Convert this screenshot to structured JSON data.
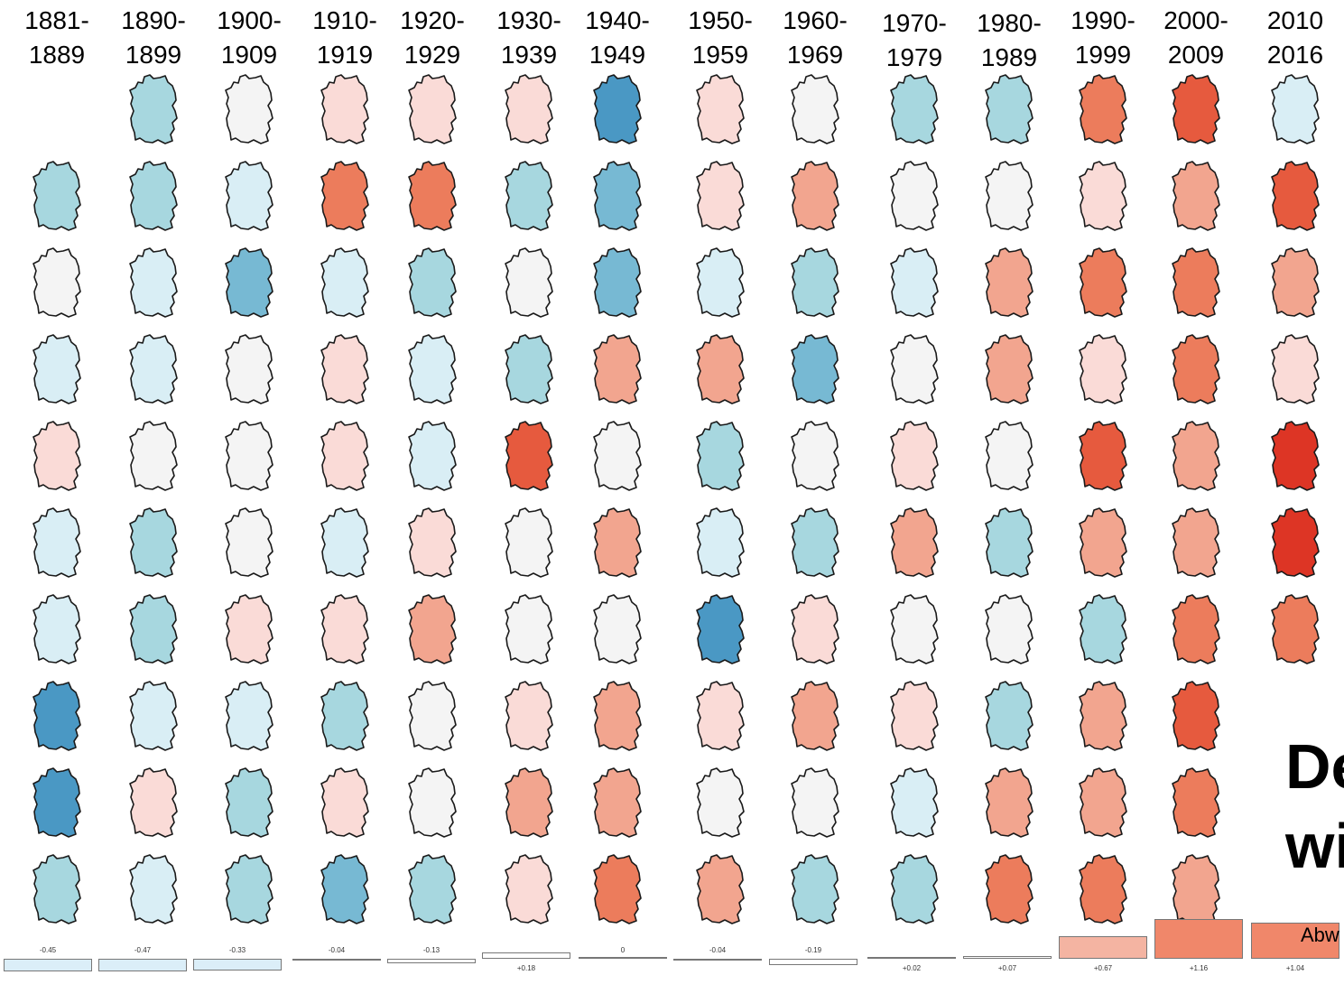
{
  "chart_data": {
    "type": "heatmap",
    "title": [
      "De",
      "wi"
    ],
    "subtitle": "Abw",
    "decades": [
      [
        "1881-",
        "1889"
      ],
      [
        "1890-",
        "1899"
      ],
      [
        "1900-",
        "1909"
      ],
      [
        "1910-",
        "1919"
      ],
      [
        "1920-",
        "1929"
      ],
      [
        "1930-",
        "1939"
      ],
      [
        "1940-",
        "1949"
      ],
      [
        "1950-",
        "1959"
      ],
      [
        "1960-",
        "1969"
      ],
      [
        "1970-",
        "1979"
      ],
      [
        "1980-",
        "1989"
      ],
      [
        "1990-",
        "1999"
      ],
      [
        "2000-",
        "2009"
      ],
      [
        "2010",
        "2016"
      ]
    ],
    "decade_mean_anomaly": [
      -0.45,
      -0.47,
      -0.33,
      -0.04,
      -0.13,
      0.18,
      0,
      -0.04,
      -0.19,
      0.02,
      0.07,
      0.67,
      1.16,
      1.04
    ],
    "decade_mean_labels": [
      "-0.45",
      "-0.47",
      "-0.33",
      "-0.04",
      "-0.13",
      "+0.18",
      "0",
      "-0.04",
      "-0.19",
      "+0.02",
      "+0.07",
      "+0.67",
      "+1.16",
      "+1.04"
    ],
    "year_anomaly_levels": [
      [
        null,
        -2,
        0,
        1,
        1,
        1,
        -4,
        1,
        0,
        -2,
        -2,
        3,
        4,
        -1
      ],
      [
        -2,
        -2,
        -1,
        3,
        3,
        -2,
        -3,
        1,
        2,
        0,
        0,
        1,
        2,
        4
      ],
      [
        0,
        -1,
        -3,
        -1,
        -2,
        0,
        -3,
        -1,
        -2,
        -1,
        2,
        3,
        3,
        2
      ],
      [
        -1,
        -1,
        0,
        1,
        -1,
        -2,
        2,
        2,
        -3,
        0,
        2,
        1,
        3,
        1
      ],
      [
        1,
        0,
        0,
        1,
        -1,
        4,
        0,
        -2,
        0,
        1,
        0,
        4,
        2,
        5
      ],
      [
        -1,
        -2,
        0,
        -1,
        1,
        0,
        2,
        -1,
        -2,
        2,
        -2,
        2,
        2,
        5
      ],
      [
        -1,
        -2,
        1,
        1,
        2,
        0,
        0,
        -4,
        1,
        0,
        0,
        -2,
        3,
        3
      ],
      [
        -4,
        -1,
        -1,
        -2,
        0,
        1,
        2,
        1,
        2,
        1,
        -2,
        2,
        4,
        null
      ],
      [
        -4,
        1,
        -2,
        1,
        0,
        2,
        2,
        0,
        0,
        -1,
        2,
        2,
        3,
        null
      ],
      [
        -2,
        -1,
        -2,
        -3,
        -2,
        1,
        3,
        2,
        -2,
        -2,
        3,
        3,
        2,
        null
      ]
    ],
    "color_scale": {
      "-4": "#4a98c4",
      "-3": "#77b9d3",
      "-2": "#a7d7df",
      "-1": "#d9eef5",
      "0": "#f4f4f4",
      "1": "#fadbd7",
      "2": "#f2a58f",
      "3": "#ec7c5c",
      "4": "#e65a3e",
      "5": "#dd3525"
    }
  }
}
